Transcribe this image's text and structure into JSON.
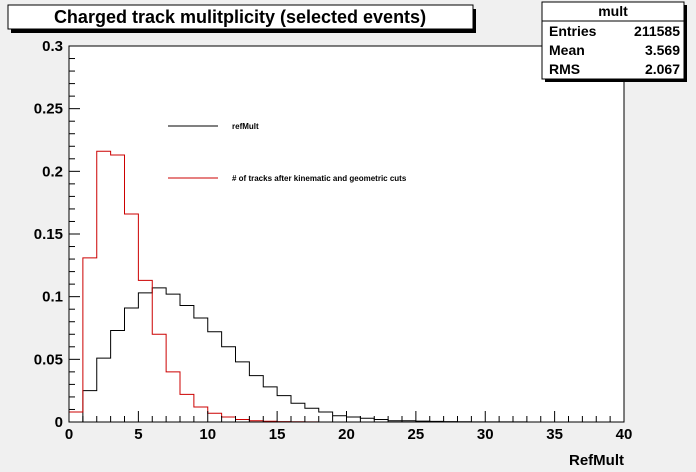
{
  "title": "Charged track mulitplicity (selected events)",
  "stats": {
    "name": "mult",
    "rows": [
      {
        "label": "Entries",
        "value": "211585"
      },
      {
        "label": "Mean",
        "value": "3.569"
      },
      {
        "label": "RMS",
        "value": "2.067"
      }
    ]
  },
  "colors": {
    "frame_background": "#f0f0f0",
    "plot_background": "#ffffff",
    "series_refmult": "#000000",
    "series_tracks": "#cc0000"
  },
  "chart_data": {
    "type": "histogram",
    "title": "Charged track mulitplicity (selected events)",
    "xlabel": "RefMult",
    "ylabel": "",
    "xlim": [
      0,
      40
    ],
    "ylim": [
      0,
      0.3
    ],
    "bin_width": 1,
    "grid": false,
    "xticks": [
      0,
      5,
      10,
      15,
      20,
      25,
      30,
      35,
      40
    ],
    "yticks": [
      0,
      0.05,
      0.1,
      0.15,
      0.2,
      0.25,
      0.3
    ],
    "ytick_labels": [
      "0",
      "0.05",
      "0.1",
      "0.15",
      "0.2",
      "0.25",
      "0.3"
    ],
    "legend_position": "upper-center",
    "series": [
      {
        "name": "refMult",
        "color": "#000000",
        "values": [
          0.0,
          0.025,
          0.051,
          0.073,
          0.091,
          0.103,
          0.107,
          0.102,
          0.093,
          0.083,
          0.072,
          0.06,
          0.048,
          0.037,
          0.028,
          0.021,
          0.015,
          0.011,
          0.008,
          0.005,
          0.004,
          0.003,
          0.002,
          0.001,
          0.001,
          0.0007,
          0.0005,
          0.0003,
          0.0002,
          0.0001,
          0.0001,
          0.0001,
          0.0001,
          0.0,
          0.0,
          0.0,
          0.0,
          0.0,
          0.0,
          0.0
        ]
      },
      {
        "name": "# of tracks after kinematic and geometric cuts",
        "color": "#cc0000",
        "values": [
          0.008,
          0.131,
          0.216,
          0.213,
          0.166,
          0.113,
          0.07,
          0.04,
          0.022,
          0.012,
          0.007,
          0.004,
          0.002,
          0.001,
          0.0006,
          0.0003,
          0.0002,
          0.0001,
          0.0,
          0.0,
          0.0,
          0.0,
          0.0,
          0.0,
          0.0,
          0.0,
          0.0,
          0.0,
          0.0,
          0.0,
          0.0,
          0.0,
          0.0,
          0.0,
          0.0,
          0.0,
          0.0,
          0.0,
          0.0,
          0.0
        ]
      }
    ]
  }
}
